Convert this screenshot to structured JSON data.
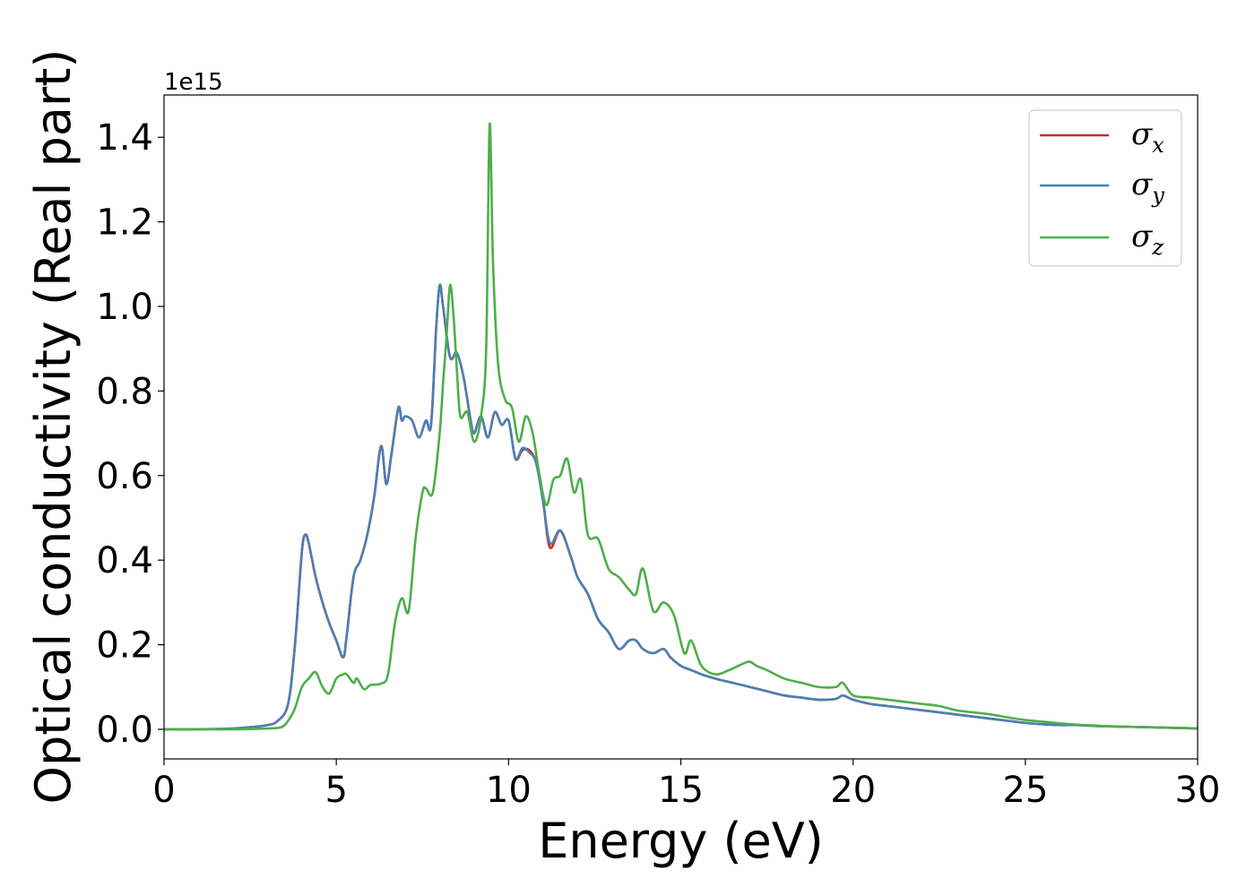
{
  "chart_data": {
    "type": "line",
    "title": "",
    "xlabel": "Energy (eV)",
    "ylabel": "Optical conductivity (Real part)",
    "y_offset_label": "1e15",
    "xlim": [
      0,
      30
    ],
    "ylim": [
      -0.07,
      1.5
    ],
    "x_ticks": [
      0,
      5,
      10,
      15,
      20,
      25,
      30
    ],
    "x_tick_labels": [
      "0",
      "5",
      "10",
      "15",
      "20",
      "25",
      "30"
    ],
    "y_ticks": [
      0.0,
      0.2,
      0.4,
      0.6,
      0.8,
      1.0,
      1.2,
      1.4
    ],
    "y_tick_labels": [
      "0.0",
      "0.2",
      "0.4",
      "0.6",
      "0.8",
      "1.0",
      "1.2",
      "1.4"
    ],
    "grid": false,
    "legend_position": "top-right",
    "series": [
      {
        "name": "σx",
        "legend_symbol": "σ",
        "legend_subscript": "x",
        "color": "#d62728",
        "x": [
          0,
          1,
          2,
          2.5,
          3,
          3.3,
          3.6,
          3.8,
          4.0,
          4.1,
          4.2,
          4.4,
          4.6,
          4.8,
          5.0,
          5.2,
          5.3,
          5.5,
          5.7,
          5.9,
          6.1,
          6.3,
          6.45,
          6.6,
          6.8,
          6.9,
          7.0,
          7.2,
          7.4,
          7.6,
          7.75,
          7.9,
          8.0,
          8.1,
          8.3,
          8.5,
          8.7,
          8.9,
          9.0,
          9.2,
          9.4,
          9.6,
          9.8,
          10.0,
          10.2,
          10.4,
          10.6,
          10.8,
          11.0,
          11.2,
          11.5,
          11.8,
          12.0,
          12.3,
          12.6,
          12.9,
          13.2,
          13.5,
          13.7,
          13.9,
          14.2,
          14.5,
          14.7,
          15.0,
          15.3,
          15.6,
          16.0,
          16.5,
          17.0,
          17.5,
          18.0,
          18.5,
          19.0,
          19.5,
          19.7,
          20.0,
          20.5,
          21.0,
          21.5,
          22.0,
          22.5,
          23.0,
          23.5,
          24.0,
          24.5,
          25.0,
          25.5,
          26.0,
          26.5,
          27.0,
          27.5,
          28.0,
          28.5,
          29.0,
          29.5,
          30.0
        ],
        "values": [
          0.0,
          0.0,
          0.002,
          0.005,
          0.01,
          0.02,
          0.06,
          0.2,
          0.42,
          0.46,
          0.44,
          0.36,
          0.3,
          0.25,
          0.21,
          0.17,
          0.22,
          0.36,
          0.4,
          0.46,
          0.55,
          0.67,
          0.58,
          0.65,
          0.76,
          0.73,
          0.74,
          0.73,
          0.69,
          0.73,
          0.72,
          0.95,
          1.05,
          1.0,
          0.88,
          0.89,
          0.83,
          0.73,
          0.7,
          0.74,
          0.69,
          0.75,
          0.72,
          0.73,
          0.64,
          0.66,
          0.66,
          0.63,
          0.54,
          0.43,
          0.47,
          0.41,
          0.36,
          0.32,
          0.26,
          0.23,
          0.19,
          0.21,
          0.21,
          0.19,
          0.18,
          0.19,
          0.17,
          0.15,
          0.14,
          0.13,
          0.12,
          0.11,
          0.1,
          0.09,
          0.08,
          0.075,
          0.07,
          0.072,
          0.08,
          0.07,
          0.06,
          0.055,
          0.05,
          0.045,
          0.04,
          0.035,
          0.03,
          0.025,
          0.02,
          0.015,
          0.012,
          0.01,
          0.01,
          0.008,
          0.007,
          0.006,
          0.005,
          0.004,
          0.003,
          0.002
        ]
      },
      {
        "name": "σy",
        "legend_symbol": "σ",
        "legend_subscript": "y",
        "color": "#4a7fb5",
        "x": [
          0,
          1,
          2,
          2.5,
          3,
          3.3,
          3.6,
          3.8,
          4.0,
          4.1,
          4.2,
          4.4,
          4.6,
          4.8,
          5.0,
          5.2,
          5.3,
          5.5,
          5.7,
          5.9,
          6.1,
          6.3,
          6.45,
          6.6,
          6.8,
          6.9,
          7.0,
          7.2,
          7.4,
          7.6,
          7.75,
          7.9,
          8.0,
          8.1,
          8.3,
          8.5,
          8.7,
          8.9,
          9.0,
          9.2,
          9.4,
          9.6,
          9.8,
          10.0,
          10.2,
          10.4,
          10.6,
          10.8,
          11.0,
          11.2,
          11.5,
          11.8,
          12.0,
          12.3,
          12.6,
          12.9,
          13.2,
          13.5,
          13.7,
          13.9,
          14.2,
          14.5,
          14.7,
          15.0,
          15.3,
          15.6,
          16.0,
          16.5,
          17.0,
          17.5,
          18.0,
          18.5,
          19.0,
          19.5,
          19.7,
          20.0,
          20.5,
          21.0,
          21.5,
          22.0,
          22.5,
          23.0,
          23.5,
          24.0,
          24.5,
          25.0,
          25.5,
          26.0,
          26.5,
          27.0,
          27.5,
          28.0,
          28.5,
          29.0,
          29.5,
          30.0
        ],
        "values": [
          0.0,
          0.0,
          0.002,
          0.005,
          0.01,
          0.02,
          0.06,
          0.2,
          0.42,
          0.46,
          0.44,
          0.36,
          0.3,
          0.25,
          0.21,
          0.17,
          0.22,
          0.36,
          0.4,
          0.46,
          0.55,
          0.67,
          0.58,
          0.65,
          0.76,
          0.73,
          0.74,
          0.73,
          0.69,
          0.73,
          0.72,
          0.95,
          1.05,
          1.0,
          0.88,
          0.89,
          0.83,
          0.73,
          0.7,
          0.74,
          0.69,
          0.75,
          0.72,
          0.73,
          0.64,
          0.665,
          0.655,
          0.63,
          0.54,
          0.44,
          0.47,
          0.41,
          0.36,
          0.32,
          0.26,
          0.23,
          0.19,
          0.21,
          0.21,
          0.19,
          0.18,
          0.19,
          0.17,
          0.15,
          0.14,
          0.13,
          0.12,
          0.11,
          0.1,
          0.09,
          0.08,
          0.075,
          0.07,
          0.072,
          0.08,
          0.07,
          0.06,
          0.055,
          0.05,
          0.045,
          0.04,
          0.035,
          0.03,
          0.025,
          0.02,
          0.015,
          0.012,
          0.01,
          0.01,
          0.008,
          0.007,
          0.006,
          0.005,
          0.004,
          0.003,
          0.002
        ]
      },
      {
        "name": "σz",
        "legend_symbol": "σ",
        "legend_subscript": "z",
        "color": "#4daf4a",
        "x": [
          0,
          1,
          2,
          3,
          3.4,
          3.6,
          3.8,
          4.0,
          4.2,
          4.4,
          4.6,
          4.8,
          5.0,
          5.2,
          5.3,
          5.5,
          5.6,
          5.8,
          6.0,
          6.3,
          6.5,
          6.7,
          6.9,
          7.1,
          7.3,
          7.5,
          7.6,
          7.8,
          8.0,
          8.1,
          8.2,
          8.3,
          8.4,
          8.5,
          8.6,
          8.8,
          9.0,
          9.2,
          9.35,
          9.45,
          9.55,
          9.7,
          9.9,
          10.1,
          10.3,
          10.5,
          10.7,
          10.9,
          11.1,
          11.3,
          11.5,
          11.7,
          11.9,
          12.1,
          12.3,
          12.6,
          12.9,
          13.2,
          13.5,
          13.7,
          13.9,
          14.2,
          14.5,
          14.8,
          15.1,
          15.3,
          15.6,
          16.0,
          16.4,
          16.8,
          17.0,
          17.2,
          17.5,
          18.0,
          18.5,
          19.0,
          19.5,
          19.7,
          20.0,
          20.5,
          21.0,
          21.5,
          22.0,
          22.5,
          23.0,
          23.5,
          24.0,
          24.5,
          25.0,
          25.5,
          26.0,
          26.5,
          27.0,
          27.5,
          28.0,
          28.5,
          29.0,
          29.5,
          30.0
        ],
        "values": [
          0.0,
          0.0,
          0.0,
          0.002,
          0.005,
          0.02,
          0.05,
          0.1,
          0.12,
          0.135,
          0.1,
          0.085,
          0.12,
          0.13,
          0.13,
          0.11,
          0.12,
          0.095,
          0.105,
          0.108,
          0.13,
          0.25,
          0.31,
          0.28,
          0.45,
          0.56,
          0.57,
          0.56,
          0.7,
          0.82,
          0.93,
          1.05,
          0.98,
          0.85,
          0.74,
          0.75,
          0.68,
          0.74,
          0.9,
          1.43,
          1.1,
          0.86,
          0.78,
          0.76,
          0.68,
          0.74,
          0.7,
          0.6,
          0.53,
          0.59,
          0.6,
          0.64,
          0.56,
          0.59,
          0.46,
          0.45,
          0.38,
          0.36,
          0.33,
          0.32,
          0.38,
          0.28,
          0.3,
          0.27,
          0.18,
          0.21,
          0.15,
          0.13,
          0.14,
          0.155,
          0.16,
          0.15,
          0.14,
          0.12,
          0.11,
          0.1,
          0.1,
          0.11,
          0.08,
          0.075,
          0.07,
          0.065,
          0.06,
          0.055,
          0.045,
          0.04,
          0.035,
          0.028,
          0.022,
          0.018,
          0.014,
          0.011,
          0.009,
          0.007,
          0.006,
          0.005,
          0.004,
          0.003,
          0.002
        ]
      }
    ]
  }
}
